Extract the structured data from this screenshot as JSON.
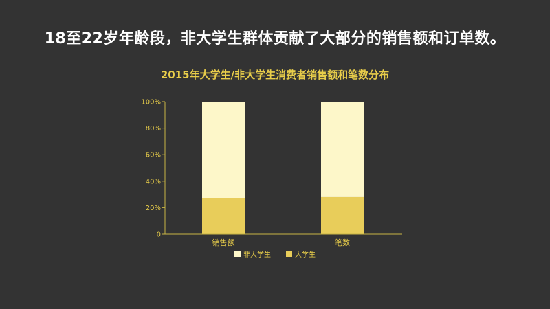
{
  "headline": "18至22岁年龄段，非大学生群体贡献了大部分的销售额和订单数。",
  "chart_data": {
    "type": "bar",
    "stacked": true,
    "title": "2015年大学生/非大学生消费者销售额和笔数分布",
    "categories": [
      "销售额",
      "笔数"
    ],
    "series": [
      {
        "name": "大学生",
        "values": [
          27,
          28
        ],
        "color": "#e8cd5a"
      },
      {
        "name": "非大学生",
        "values": [
          73,
          72
        ],
        "color": "#fdf7c9"
      }
    ],
    "yticks": [
      "0",
      "20%",
      "40%",
      "60%",
      "80%",
      "100%"
    ],
    "ylim": [
      0,
      100
    ],
    "xlabel": "",
    "ylabel": "",
    "legend": [
      {
        "label": "非大学生",
        "color": "#fdf7c9"
      },
      {
        "label": "大学生",
        "color": "#e8cd5a"
      }
    ],
    "legend_position": "bottom",
    "grid": false
  }
}
